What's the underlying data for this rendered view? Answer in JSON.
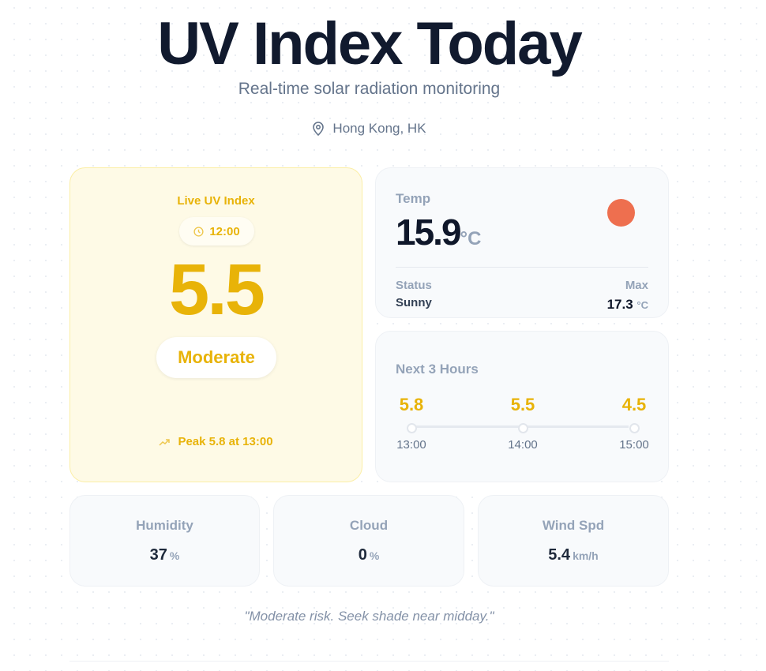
{
  "header": {
    "title": "UV Index Today",
    "subtitle": "Real-time solar radiation monitoring",
    "location": "Hong Kong, HK",
    "location_icon": "map-pin-icon"
  },
  "uv_card": {
    "label": "Live UV Index",
    "time": "12:00",
    "value": "5.5",
    "level": "Moderate",
    "peak": "Peak 5.8 at 13:00",
    "accent": "#e8b308"
  },
  "temp_card": {
    "label": "Temp",
    "value": "15.9",
    "unit": "°C",
    "status_label": "Status",
    "status": "Sunny",
    "max_label": "Max",
    "max": "17.3",
    "max_unit": "°C",
    "sun_color": "#ee6f4f"
  },
  "forecast": {
    "label": "Next 3 Hours",
    "hours": [
      {
        "value": "5.8",
        "time": "13:00"
      },
      {
        "value": "5.5",
        "time": "14:00"
      },
      {
        "value": "4.5",
        "time": "15:00"
      }
    ]
  },
  "stats": [
    {
      "label": "Humidity",
      "value": "37",
      "unit": "%"
    },
    {
      "label": "Cloud",
      "value": "0",
      "unit": "%"
    },
    {
      "label": "Wind Spd",
      "value": "5.4",
      "unit": "km/h"
    }
  ],
  "advice": "\"Moderate risk. Seek shade near midday.\""
}
